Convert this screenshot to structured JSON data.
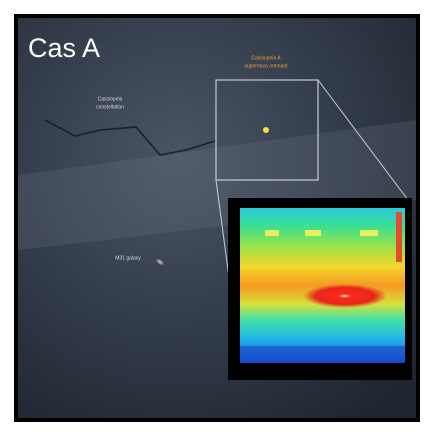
{
  "title": "Cas A",
  "remnant_label": [
    "Cassiopeia A",
    "supernova remnant"
  ],
  "constellation_label": [
    "Cassiopeia",
    "constellation"
  ],
  "galaxy_label": "M31 galaxy"
}
